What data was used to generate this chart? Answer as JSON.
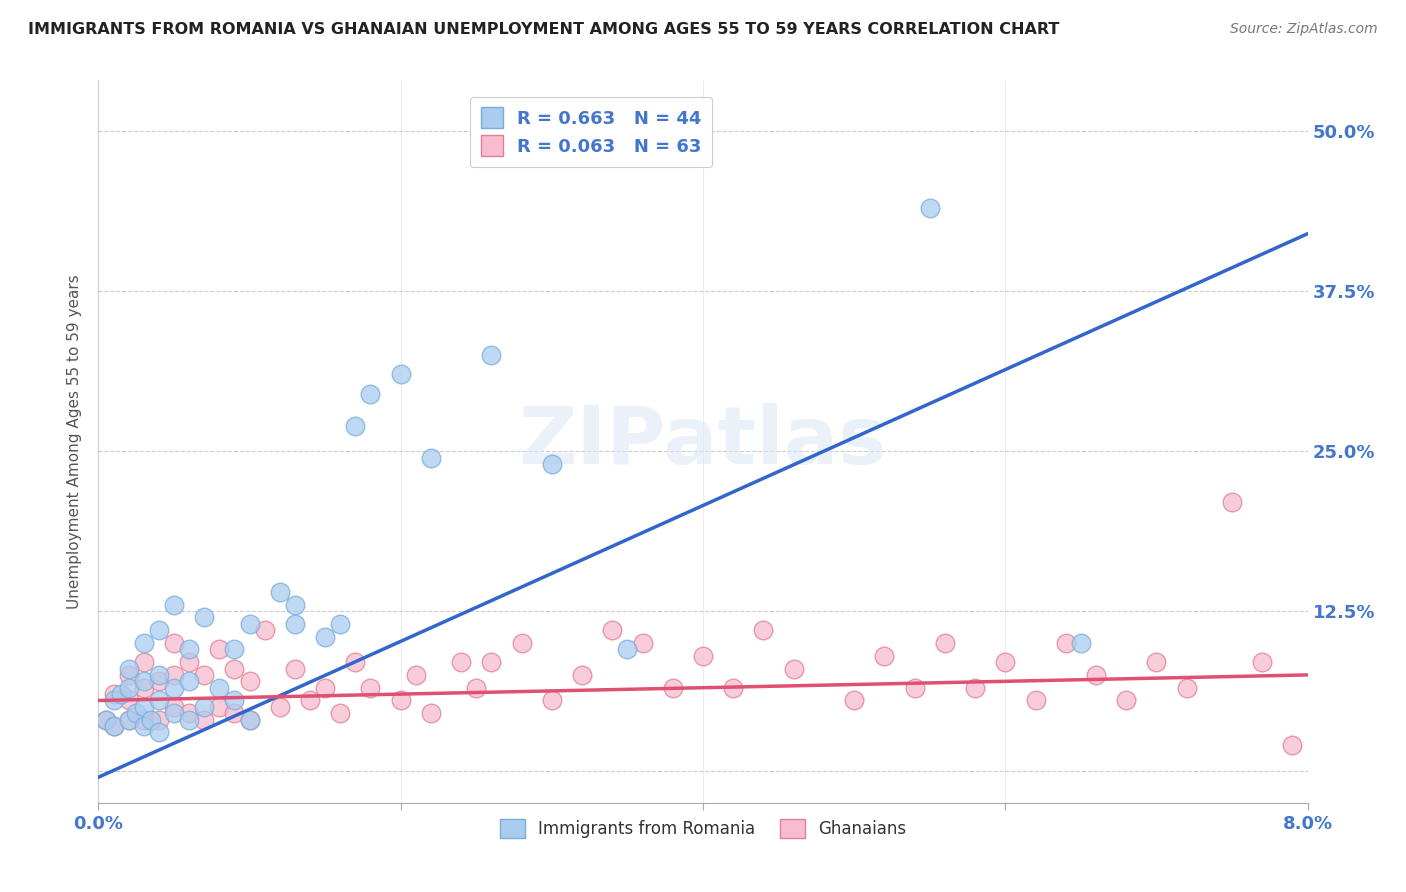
{
  "title": "IMMIGRANTS FROM ROMANIA VS GHANAIAN UNEMPLOYMENT AMONG AGES 55 TO 59 YEARS CORRELATION CHART",
  "source": "Source: ZipAtlas.com",
  "ylabel": "Unemployment Among Ages 55 to 59 years",
  "xmin": 0.0,
  "xmax": 0.08,
  "ymin": -0.025,
  "ymax": 0.54,
  "ytick_positions": [
    0.0,
    0.125,
    0.25,
    0.375,
    0.5
  ],
  "ytick_labels": [
    "",
    "12.5%",
    "25.0%",
    "37.5%",
    "50.0%"
  ],
  "background_color": "#ffffff",
  "grid_color": "#cccccc",
  "romania_color": "#aaccf0",
  "romania_edge_color": "#7aadd6",
  "ghana_color": "#f8bbd0",
  "ghana_edge_color": "#e08090",
  "romania_line_color": "#3366cc",
  "ghana_line_color": "#e05070",
  "legend_romania_r": "R = 0.663",
  "legend_romania_n": "N = 44",
  "legend_ghana_r": "R = 0.063",
  "legend_ghana_n": "N = 63",
  "romania_scatter_x": [
    0.0005,
    0.001,
    0.001,
    0.0015,
    0.002,
    0.002,
    0.002,
    0.0025,
    0.003,
    0.003,
    0.003,
    0.003,
    0.0035,
    0.004,
    0.004,
    0.004,
    0.004,
    0.005,
    0.005,
    0.005,
    0.006,
    0.006,
    0.006,
    0.007,
    0.007,
    0.008,
    0.009,
    0.009,
    0.01,
    0.01,
    0.012,
    0.013,
    0.013,
    0.015,
    0.016,
    0.017,
    0.018,
    0.02,
    0.022,
    0.026,
    0.03,
    0.035,
    0.055,
    0.065
  ],
  "romania_scatter_y": [
    0.04,
    0.035,
    0.055,
    0.06,
    0.04,
    0.065,
    0.08,
    0.045,
    0.035,
    0.05,
    0.07,
    0.1,
    0.04,
    0.03,
    0.055,
    0.075,
    0.11,
    0.045,
    0.065,
    0.13,
    0.04,
    0.07,
    0.095,
    0.05,
    0.12,
    0.065,
    0.055,
    0.095,
    0.04,
    0.115,
    0.14,
    0.115,
    0.13,
    0.105,
    0.115,
    0.27,
    0.295,
    0.31,
    0.245,
    0.325,
    0.24,
    0.095,
    0.44,
    0.1
  ],
  "ghana_scatter_x": [
    0.0005,
    0.001,
    0.001,
    0.002,
    0.002,
    0.002,
    0.003,
    0.003,
    0.003,
    0.004,
    0.004,
    0.005,
    0.005,
    0.005,
    0.006,
    0.006,
    0.007,
    0.007,
    0.008,
    0.008,
    0.009,
    0.009,
    0.01,
    0.01,
    0.011,
    0.012,
    0.013,
    0.014,
    0.015,
    0.016,
    0.017,
    0.018,
    0.02,
    0.021,
    0.022,
    0.024,
    0.025,
    0.026,
    0.028,
    0.03,
    0.032,
    0.034,
    0.036,
    0.038,
    0.04,
    0.042,
    0.044,
    0.046,
    0.05,
    0.052,
    0.054,
    0.056,
    0.058,
    0.06,
    0.062,
    0.064,
    0.066,
    0.068,
    0.07,
    0.072,
    0.075,
    0.077,
    0.079
  ],
  "ghana_scatter_y": [
    0.04,
    0.035,
    0.06,
    0.04,
    0.055,
    0.075,
    0.04,
    0.065,
    0.085,
    0.04,
    0.07,
    0.05,
    0.075,
    0.1,
    0.045,
    0.085,
    0.04,
    0.075,
    0.05,
    0.095,
    0.045,
    0.08,
    0.04,
    0.07,
    0.11,
    0.05,
    0.08,
    0.055,
    0.065,
    0.045,
    0.085,
    0.065,
    0.055,
    0.075,
    0.045,
    0.085,
    0.065,
    0.085,
    0.1,
    0.055,
    0.075,
    0.11,
    0.1,
    0.065,
    0.09,
    0.065,
    0.11,
    0.08,
    0.055,
    0.09,
    0.065,
    0.1,
    0.065,
    0.085,
    0.055,
    0.1,
    0.075,
    0.055,
    0.085,
    0.065,
    0.21,
    0.085,
    0.02
  ],
  "romania_line_x0": 0.0,
  "romania_line_y0": -0.005,
  "romania_line_x1": 0.08,
  "romania_line_y1": 0.42,
  "ghana_line_x0": 0.0,
  "ghana_line_y0": 0.055,
  "ghana_line_x1": 0.08,
  "ghana_line_y1": 0.075
}
